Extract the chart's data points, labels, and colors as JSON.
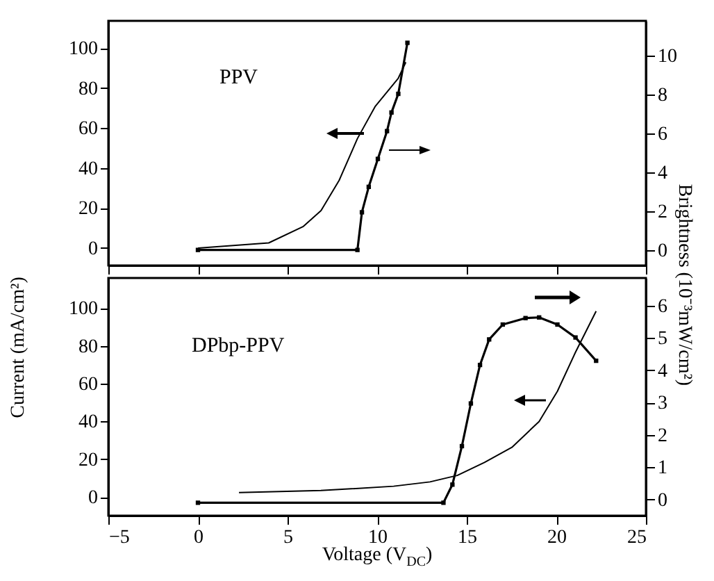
{
  "chart_data": [
    {
      "type": "line",
      "title": "PPV",
      "xlim": [
        -5,
        25
      ],
      "xticks": [
        -5,
        0,
        5,
        10,
        15,
        20,
        25
      ],
      "ylim": [
        -8.7,
        113.7
      ],
      "yticks": [
        0,
        20,
        40,
        60,
        80,
        100
      ],
      "y2lim": [
        -0.8,
        11.8
      ],
      "y2ticks": [
        0,
        2,
        4,
        6,
        8,
        10
      ],
      "tick_labels": "y",
      "series": [
        {
          "color": "#000000",
          "x": [
            0,
            3.95,
            5.86,
            6.87,
            7.88,
            8.9,
            9.9,
            11.18,
            11.6
          ],
          "values": [
            0,
            2.6,
            10.7,
            18.8,
            33.9,
            54.8,
            71,
            85,
            93
          ]
        },
        {
          "color": "#000000",
          "axis": "y2",
          "marker": "square",
          "x": [
            0,
            8.9,
            9.15,
            9.53,
            10.04,
            10.55,
            10.8,
            11.18,
            11.69
          ],
          "values": [
            0,
            0,
            1.94,
            3.25,
            4.69,
            6.12,
            7.08,
            8.04,
            10.67
          ]
        }
      ]
    },
    {
      "type": "line",
      "title": "DPbp-PPV",
      "xlabel": "Voltage (V$_{DC}$)",
      "ylabel": "Current (mA/cm²)",
      "y2label": "Brightness (10⁻³mW/cm²)",
      "xlim": [
        -5,
        25
      ],
      "xticks": [
        -5,
        0,
        5,
        10,
        15,
        20,
        25
      ],
      "ylim": [
        -9.9,
        116
      ],
      "yticks": [
        0,
        20,
        40,
        60,
        80,
        100
      ],
      "y2lim": [
        -0.5,
        6.85
      ],
      "y2ticks": [
        0,
        1,
        2,
        3,
        4,
        5,
        6
      ],
      "series": [
        {
          "color": "#000000",
          "x": [
            2.29,
            6.86,
            10.92,
            12.95,
            13.97,
            14.47,
            15.99,
            17.52,
            19.04,
            20.06,
            21.07,
            22.22
          ],
          "values": [
            2.3,
            3.4,
            5.7,
            8,
            10.3,
            11.4,
            18.3,
            26.3,
            40,
            56,
            76.7,
            98.4
          ]
        },
        {
          "color": "#000000",
          "axis": "y2",
          "marker": "square",
          "x": [
            0,
            13.7,
            14.2,
            14.73,
            15.23,
            15.74,
            16.25,
            17.01,
            18.28,
            19.04,
            20.06,
            21.07,
            22.22
          ],
          "values": [
            -0.1,
            -0.1,
            0.46,
            1.65,
            2.97,
            4.16,
            4.95,
            5.41,
            5.61,
            5.63,
            5.41,
            5.01,
            4.29
          ]
        }
      ]
    }
  ]
}
